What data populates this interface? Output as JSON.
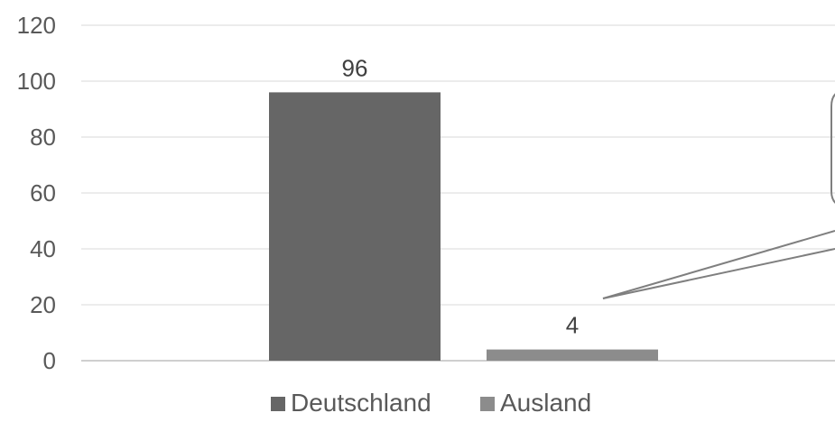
{
  "chart_data": {
    "type": "bar",
    "title": "",
    "xlabel": "",
    "ylabel": "",
    "ylim": [
      0,
      120
    ],
    "yticks": [
      0,
      20,
      40,
      60,
      80,
      100,
      120
    ],
    "grid": true,
    "legend_position": "bottom",
    "series": [
      {
        "name": "Deutschland",
        "value": 96,
        "color": "#666666"
      },
      {
        "name": "Ausland",
        "value": 4,
        "color": "#8c8c8c"
      }
    ]
  }
}
